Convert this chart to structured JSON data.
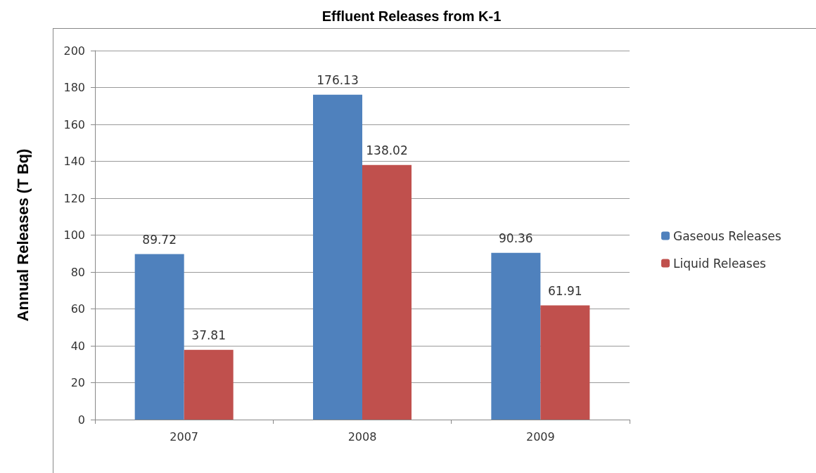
{
  "chart_data": {
    "type": "bar",
    "title": "Effluent Releases from K-1",
    "ylabel": "Annual Releases (T Bq)",
    "categories": [
      "2007",
      "2008",
      "2009"
    ],
    "series": [
      {
        "name": "Gaseous Releases",
        "color": "#4f81bd",
        "values": [
          89.72,
          176.13,
          90.36
        ]
      },
      {
        "name": "Liquid Releases",
        "color": "#c0504d",
        "values": [
          37.81,
          138.02,
          61.91
        ]
      }
    ],
    "ylim": [
      0,
      200
    ],
    "yticks": [
      0,
      20,
      40,
      60,
      80,
      100,
      120,
      140,
      160,
      180,
      200
    ],
    "grid": "y",
    "legend": "right",
    "data_labels": true
  }
}
